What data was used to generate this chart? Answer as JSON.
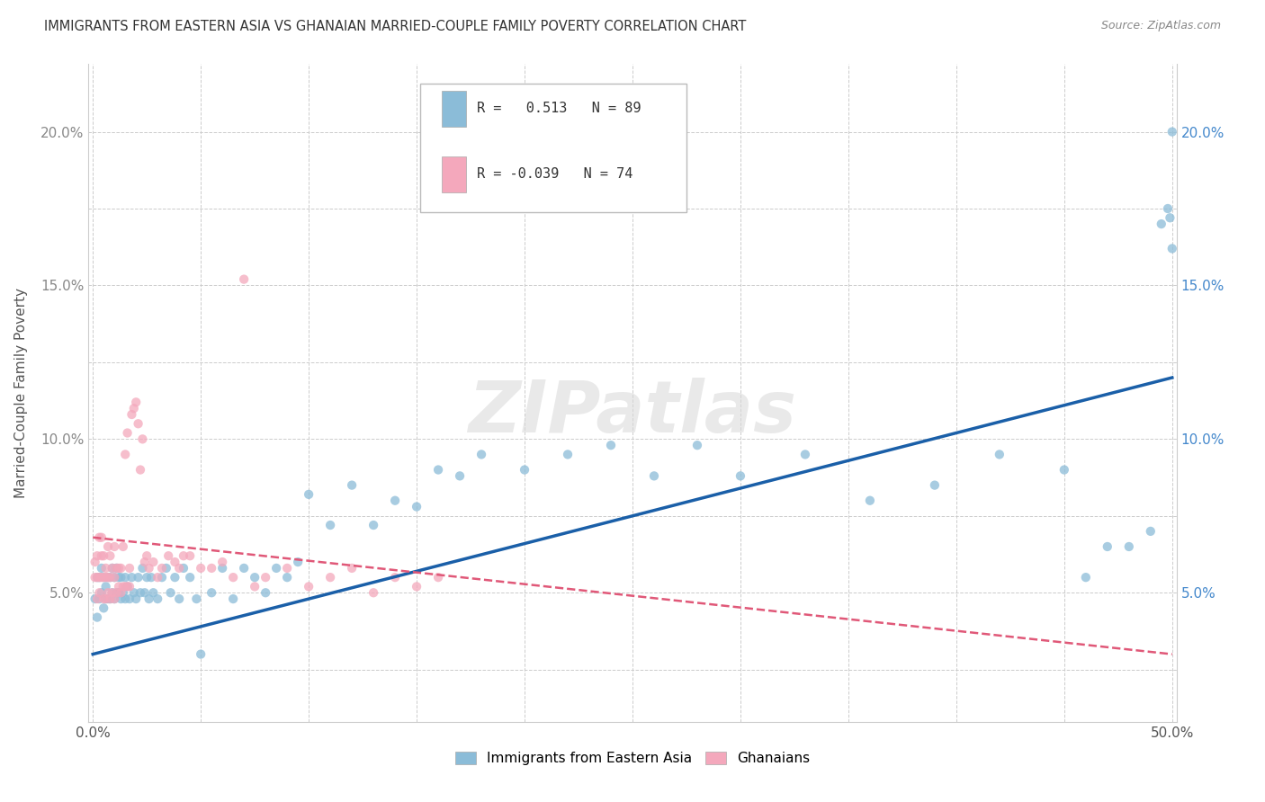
{
  "title": "IMMIGRANTS FROM EASTERN ASIA VS GHANAIAN MARRIED-COUPLE FAMILY POVERTY CORRELATION CHART",
  "source": "Source: ZipAtlas.com",
  "ylabel": "Married-Couple Family Poverty",
  "xlim": [
    -0.002,
    0.502
  ],
  "ylim": [
    0.008,
    0.222
  ],
  "xtick_positions": [
    0.0,
    0.05,
    0.1,
    0.15,
    0.2,
    0.25,
    0.3,
    0.35,
    0.4,
    0.45,
    0.5
  ],
  "xtick_labels": [
    "0.0%",
    "",
    "",
    "",
    "",
    "",
    "",
    "",
    "",
    "",
    "50.0%"
  ],
  "ytick_positions": [
    0.025,
    0.05,
    0.075,
    0.1,
    0.125,
    0.15,
    0.175,
    0.2
  ],
  "ytick_labels_left": [
    "",
    "5.0%",
    "",
    "10.0%",
    "",
    "15.0%",
    "",
    "20.0%"
  ],
  "ytick_labels_right": [
    "",
    "5.0%",
    "",
    "10.0%",
    "",
    "15.0%",
    "",
    "20.0%"
  ],
  "blue_R": 0.513,
  "blue_N": 89,
  "pink_R": -0.039,
  "pink_N": 74,
  "blue_color": "#8bbcd8",
  "pink_color": "#f4a8bc",
  "blue_line_color": "#1a5fa8",
  "pink_line_color": "#e05878",
  "watermark": "ZIPatlas",
  "legend_label_blue": "Immigrants from Eastern Asia",
  "legend_label_pink": "Ghanaians",
  "blue_line_x0": 0.0,
  "blue_line_y0": 0.03,
  "blue_line_x1": 0.5,
  "blue_line_y1": 0.12,
  "pink_line_x0": 0.0,
  "pink_line_y0": 0.068,
  "pink_line_x1": 0.5,
  "pink_line_y1": 0.03,
  "blue_x": [
    0.001,
    0.002,
    0.002,
    0.003,
    0.003,
    0.004,
    0.004,
    0.005,
    0.005,
    0.006,
    0.006,
    0.007,
    0.007,
    0.008,
    0.008,
    0.009,
    0.009,
    0.01,
    0.01,
    0.011,
    0.011,
    0.012,
    0.012,
    0.013,
    0.013,
    0.014,
    0.015,
    0.015,
    0.016,
    0.017,
    0.018,
    0.019,
    0.02,
    0.021,
    0.022,
    0.023,
    0.024,
    0.025,
    0.026,
    0.027,
    0.028,
    0.03,
    0.032,
    0.034,
    0.036,
    0.038,
    0.04,
    0.042,
    0.045,
    0.048,
    0.05,
    0.055,
    0.06,
    0.065,
    0.07,
    0.075,
    0.08,
    0.085,
    0.09,
    0.095,
    0.1,
    0.11,
    0.12,
    0.13,
    0.14,
    0.15,
    0.16,
    0.17,
    0.18,
    0.2,
    0.22,
    0.24,
    0.26,
    0.28,
    0.3,
    0.33,
    0.36,
    0.39,
    0.42,
    0.45,
    0.46,
    0.47,
    0.48,
    0.49,
    0.495,
    0.498,
    0.499,
    0.5,
    0.5
  ],
  "blue_y": [
    0.048,
    0.042,
    0.055,
    0.048,
    0.055,
    0.05,
    0.058,
    0.045,
    0.055,
    0.048,
    0.052,
    0.048,
    0.055,
    0.048,
    0.055,
    0.05,
    0.058,
    0.048,
    0.055,
    0.05,
    0.058,
    0.05,
    0.055,
    0.048,
    0.055,
    0.05,
    0.048,
    0.055,
    0.052,
    0.048,
    0.055,
    0.05,
    0.048,
    0.055,
    0.05,
    0.058,
    0.05,
    0.055,
    0.048,
    0.055,
    0.05,
    0.048,
    0.055,
    0.058,
    0.05,
    0.055,
    0.048,
    0.058,
    0.055,
    0.048,
    0.03,
    0.05,
    0.058,
    0.048,
    0.058,
    0.055,
    0.05,
    0.058,
    0.055,
    0.06,
    0.082,
    0.072,
    0.085,
    0.072,
    0.08,
    0.078,
    0.09,
    0.088,
    0.095,
    0.09,
    0.095,
    0.098,
    0.088,
    0.098,
    0.088,
    0.095,
    0.08,
    0.085,
    0.095,
    0.09,
    0.055,
    0.065,
    0.065,
    0.07,
    0.17,
    0.175,
    0.172,
    0.2,
    0.162
  ],
  "pink_x": [
    0.001,
    0.001,
    0.002,
    0.002,
    0.002,
    0.003,
    0.003,
    0.003,
    0.004,
    0.004,
    0.004,
    0.005,
    0.005,
    0.005,
    0.006,
    0.006,
    0.006,
    0.007,
    0.007,
    0.007,
    0.008,
    0.008,
    0.008,
    0.009,
    0.009,
    0.01,
    0.01,
    0.01,
    0.011,
    0.011,
    0.012,
    0.012,
    0.013,
    0.013,
    0.014,
    0.014,
    0.015,
    0.015,
    0.016,
    0.016,
    0.017,
    0.017,
    0.018,
    0.019,
    0.02,
    0.021,
    0.022,
    0.023,
    0.024,
    0.025,
    0.026,
    0.028,
    0.03,
    0.032,
    0.035,
    0.038,
    0.04,
    0.042,
    0.045,
    0.05,
    0.055,
    0.06,
    0.065,
    0.07,
    0.075,
    0.08,
    0.09,
    0.1,
    0.11,
    0.12,
    0.13,
    0.14,
    0.15,
    0.16
  ],
  "pink_y": [
    0.055,
    0.06,
    0.048,
    0.055,
    0.062,
    0.05,
    0.055,
    0.068,
    0.055,
    0.062,
    0.068,
    0.048,
    0.055,
    0.062,
    0.048,
    0.055,
    0.058,
    0.05,
    0.055,
    0.065,
    0.048,
    0.055,
    0.062,
    0.05,
    0.058,
    0.048,
    0.055,
    0.065,
    0.05,
    0.058,
    0.052,
    0.058,
    0.05,
    0.058,
    0.052,
    0.065,
    0.052,
    0.095,
    0.052,
    0.102,
    0.052,
    0.058,
    0.108,
    0.11,
    0.112,
    0.105,
    0.09,
    0.1,
    0.06,
    0.062,
    0.058,
    0.06,
    0.055,
    0.058,
    0.062,
    0.06,
    0.058,
    0.062,
    0.062,
    0.058,
    0.058,
    0.06,
    0.055,
    0.152,
    0.052,
    0.055,
    0.058,
    0.052,
    0.055,
    0.058,
    0.05,
    0.055,
    0.052,
    0.055
  ],
  "background_color": "#ffffff",
  "grid_color": "#cccccc"
}
